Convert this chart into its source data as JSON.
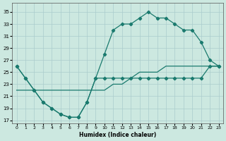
{
  "xlabel": "Humidex (Indice chaleur)",
  "bg_color": "#cce8e0",
  "grid_color": "#aacccc",
  "line_color": "#1a7a6e",
  "series": [
    {
      "x": [
        0,
        1,
        2,
        3,
        4,
        5,
        6,
        7,
        8,
        9,
        10,
        11,
        12,
        13,
        14,
        15,
        16,
        17,
        18,
        19,
        20,
        21,
        22,
        23
      ],
      "y": [
        26,
        24,
        22,
        20,
        19,
        18,
        17.5,
        17.5,
        20,
        24,
        24,
        24,
        24,
        24,
        24,
        24,
        24,
        24,
        24,
        24,
        24,
        24,
        26,
        26
      ]
    },
    {
      "x": [
        0,
        1,
        2,
        3,
        4,
        5,
        6,
        7,
        8,
        9,
        10,
        11,
        12,
        13,
        14,
        15,
        16,
        17,
        18,
        19,
        20,
        21,
        22,
        23
      ],
      "y": [
        22,
        22,
        22,
        22,
        22,
        22,
        22,
        22,
        22,
        22,
        22,
        23,
        23,
        24,
        25,
        25,
        25,
        26,
        26,
        26,
        26,
        26,
        26,
        26
      ]
    },
    {
      "x": [
        0,
        1,
        2,
        3,
        4,
        5,
        6,
        7,
        8,
        9,
        10,
        11,
        12,
        13,
        14,
        15,
        16,
        17,
        18,
        19,
        20,
        21,
        22,
        23
      ],
      "y": [
        26,
        24,
        22,
        20,
        19,
        18,
        17.5,
        17.5,
        20,
        24,
        28,
        32,
        33,
        33,
        34,
        35,
        34,
        34,
        33,
        32,
        32,
        30,
        27,
        26
      ]
    }
  ],
  "yticks": [
    17,
    19,
    21,
    23,
    25,
    27,
    29,
    31,
    33,
    35
  ],
  "xticks": [
    0,
    1,
    2,
    3,
    4,
    5,
    6,
    7,
    8,
    9,
    10,
    11,
    12,
    13,
    14,
    15,
    16,
    17,
    18,
    19,
    20,
    21,
    22,
    23
  ],
  "xlim": [
    -0.5,
    23.5
  ],
  "ylim": [
    16.5,
    36.5
  ]
}
